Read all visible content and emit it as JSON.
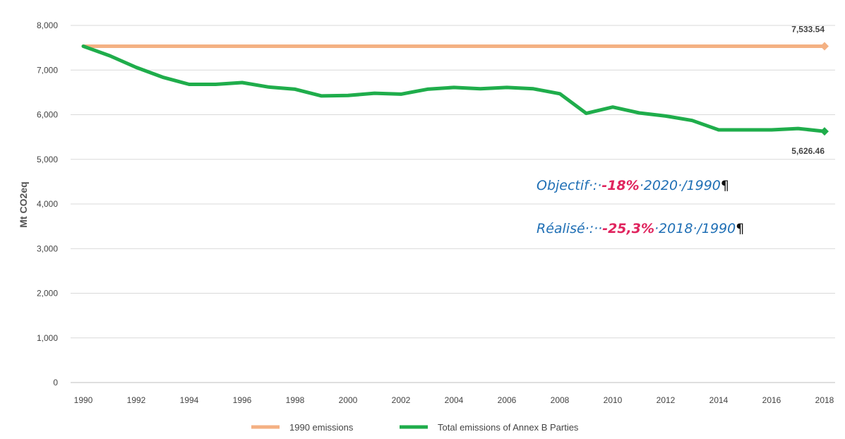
{
  "chart_data": {
    "type": "line",
    "ylabel": "Mt CO2eq",
    "xlabel": "",
    "ylim": [
      0,
      8000
    ],
    "y_ticks": [
      "0",
      "1,000",
      "2,000",
      "3,000",
      "4,000",
      "5,000",
      "6,000",
      "7,000",
      "8,000"
    ],
    "x_ticks": [
      "1990",
      "1992",
      "1994",
      "1996",
      "1998",
      "2000",
      "2002",
      "2004",
      "2006",
      "2008",
      "2010",
      "2012",
      "2014",
      "2016",
      "2018"
    ],
    "x": [
      1990,
      1991,
      1992,
      1993,
      1994,
      1995,
      1996,
      1997,
      1998,
      1999,
      2000,
      2001,
      2002,
      2003,
      2004,
      2005,
      2006,
      2007,
      2008,
      2009,
      2010,
      2011,
      2012,
      2013,
      2014,
      2015,
      2016,
      2017,
      2018
    ],
    "series": [
      {
        "name": "1990 emissions",
        "color": "#f4b183",
        "values": [
          7533.54,
          7533.54,
          7533.54,
          7533.54,
          7533.54,
          7533.54,
          7533.54,
          7533.54,
          7533.54,
          7533.54,
          7533.54,
          7533.54,
          7533.54,
          7533.54,
          7533.54,
          7533.54,
          7533.54,
          7533.54,
          7533.54,
          7533.54,
          7533.54,
          7533.54,
          7533.54,
          7533.54,
          7533.54,
          7533.54,
          7533.54,
          7533.54,
          7533.54
        ],
        "end_label": "7,533.54"
      },
      {
        "name": "Total emissions of Annex B Parties",
        "color": "#1fad4b",
        "values": [
          7533.54,
          7320,
          7060,
          6840,
          6680,
          6680,
          6720,
          6620,
          6570,
          6420,
          6430,
          6480,
          6460,
          6570,
          6610,
          6580,
          6610,
          6580,
          6470,
          6030,
          6170,
          6040,
          5970,
          5870,
          5660,
          5660,
          5660,
          5690,
          5626.46
        ],
        "end_label": "5,626.46"
      }
    ],
    "legend_position": "bottom",
    "grid": true
  },
  "annotations": {
    "line1": {
      "prefix": "Objectif·:·",
      "pct": "-18%",
      "suffix": "·2020·/1990",
      "pilcrow": "¶"
    },
    "line2": {
      "prefix": "Réalisé·:··",
      "pct": "-25,3%",
      "suffix": "·2018·/1990",
      "pilcrow": "¶"
    }
  }
}
